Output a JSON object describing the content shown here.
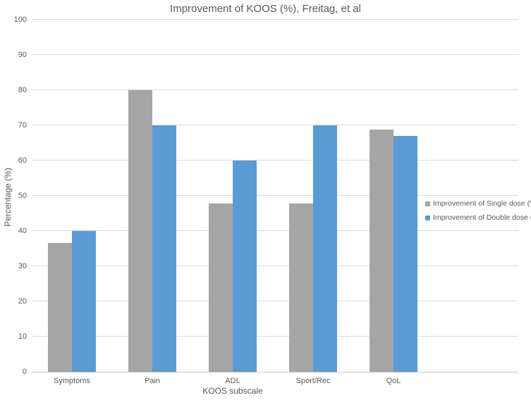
{
  "chart_data": {
    "type": "bar",
    "title": "Improvement of KOOS (%), Freitag, et al",
    "xlabel": "KOOS subscale",
    "ylabel": "Percentage (%)",
    "categories": [
      "Symptoms",
      "Pain",
      "ADL",
      "Sport/Rec",
      "QoL"
    ],
    "series": [
      {
        "name": "Improvement of Single dose (%)",
        "color": "#A5A5A5",
        "values": [
          36.7,
          80,
          47.8,
          47.8,
          68.9
        ]
      },
      {
        "name": "Improvement of Double dose (%)",
        "color": "#5B9BD5",
        "values": [
          40,
          70,
          60,
          70,
          67
        ]
      }
    ],
    "ylim": [
      0,
      100
    ],
    "ytick_step": 10,
    "grid": true,
    "legend_position": "right-overlay"
  },
  "colors": {
    "text": "#595959",
    "gridline": "#D9D9D9",
    "axis_line": "#C9C9C9",
    "background": "#FFFFFF"
  }
}
